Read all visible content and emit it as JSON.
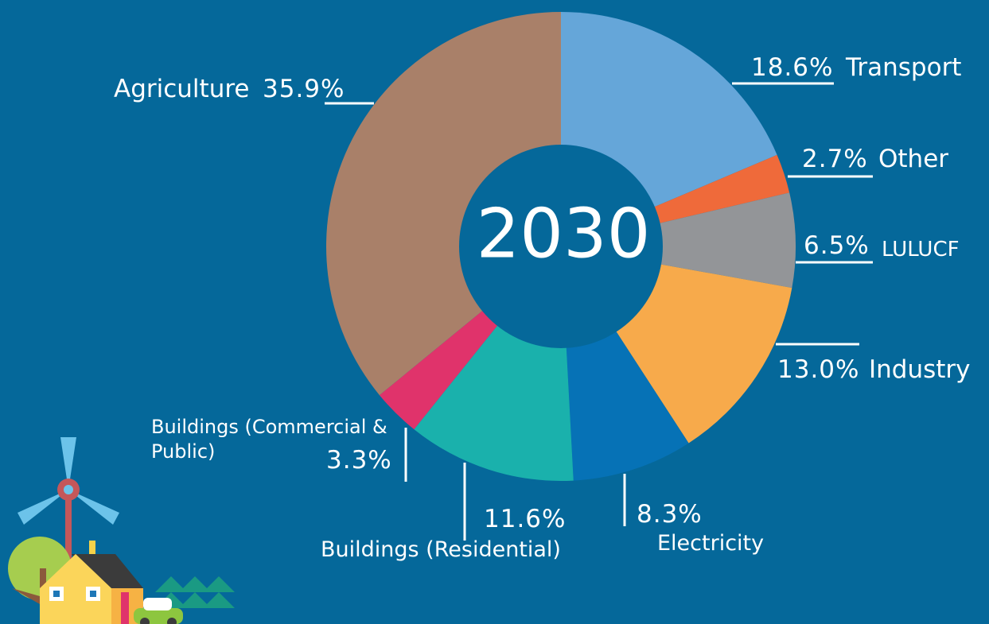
{
  "chart_data": {
    "type": "donut",
    "center_label": "2030",
    "categories": [
      "Transport",
      "Other",
      "LULUCF",
      "Industry",
      "Electricity",
      "Buildings (Residential)",
      "Buildings (Commercial & Public)",
      "Agriculture"
    ],
    "values": [
      18.6,
      2.7,
      6.5,
      13.0,
      8.3,
      11.6,
      3.3,
      35.9
    ],
    "value_labels": [
      "18.6%",
      "2.7%",
      "6.5%",
      "13.0%",
      "8.3%",
      "11.6%",
      "3.3%",
      "35.9%"
    ],
    "colors": [
      "#65a6d9",
      "#ef6a3a",
      "#939598",
      "#f7aa4b",
      "#0672b6",
      "#1ab1ac",
      "#e0336b",
      "#a98069"
    ]
  }
}
